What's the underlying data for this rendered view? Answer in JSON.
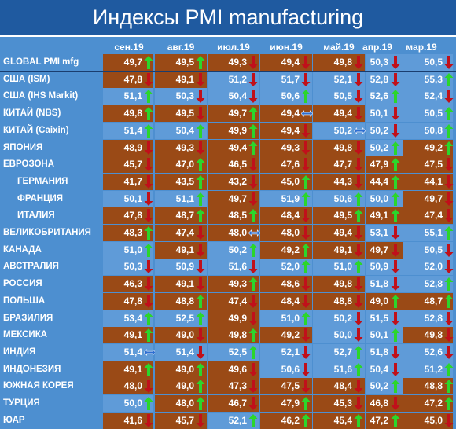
{
  "title": "Индексы PMI manufacturing",
  "chart_data": {
    "type": "table",
    "title": "Индексы PMI manufacturing",
    "columns": [
      "сен.19",
      "авг.19",
      "июл.19",
      "июн.19",
      "май.19",
      "апр.19",
      "мар.19"
    ],
    "colors": {
      "brown": "#9a4a16",
      "blue": "#5f9bd8",
      "up": "#2bd62b",
      "down": "#c0101a",
      "flat": "#2e6fd1"
    },
    "rows": [
      {
        "label": "GLOBAL PMI mfg",
        "values": [
          "49,7",
          "49,5",
          "49,3",
          "49,4",
          "49,8",
          "50,3",
          "50,5"
        ],
        "trend": [
          "up",
          "up",
          "down",
          "down",
          "down",
          "down",
          "down"
        ],
        "bg": [
          "brown",
          "brown",
          "brown",
          "brown",
          "brown",
          "blue",
          "blue"
        ]
      },
      {
        "label": "США (ISM)",
        "values": [
          "47,8",
          "49,1",
          "51,2",
          "51,7",
          "52,1",
          "52,8",
          "55,3"
        ],
        "trend": [
          "down",
          "down",
          "down",
          "down",
          "down",
          "down",
          "up"
        ],
        "bg": [
          "brown",
          "brown",
          "blue",
          "blue",
          "blue",
          "blue",
          "blue"
        ]
      },
      {
        "label": "США (IHS Markit)",
        "values": [
          "51,1",
          "50,3",
          "50,4",
          "50,6",
          "50,5",
          "52,6",
          "52,4"
        ],
        "trend": [
          "up",
          "down",
          "down",
          "up",
          "down",
          "up",
          "down"
        ],
        "bg": [
          "blue",
          "blue",
          "blue",
          "blue",
          "blue",
          "blue",
          "blue"
        ]
      },
      {
        "label": "КИТАЙ (NBS)",
        "values": [
          "49,8",
          "49,5",
          "49,7",
          "49,4",
          "49,4",
          "50,1",
          "50,5"
        ],
        "trend": [
          "up",
          "down",
          "up",
          "flat",
          "down",
          "down",
          "up"
        ],
        "bg": [
          "brown",
          "brown",
          "brown",
          "brown",
          "brown",
          "blue",
          "blue"
        ]
      },
      {
        "label": "КИТАЙ (Caixin)",
        "values": [
          "51,4",
          "50,4",
          "49,9",
          "49,4",
          "50,2",
          "50,2",
          "50,8"
        ],
        "trend": [
          "up",
          "up",
          "up",
          "down",
          "flat",
          "down",
          "up"
        ],
        "bg": [
          "blue",
          "blue",
          "brown",
          "brown",
          "blue",
          "blue",
          "blue"
        ]
      },
      {
        "label": "ЯПОНИЯ",
        "values": [
          "48,9",
          "49,3",
          "49,4",
          "49,3",
          "49,8",
          "50,2",
          "49,2"
        ],
        "trend": [
          "down",
          "down",
          "up",
          "down",
          "down",
          "up",
          "up"
        ],
        "bg": [
          "brown",
          "brown",
          "brown",
          "brown",
          "brown",
          "blue",
          "brown"
        ]
      },
      {
        "label": "ЕВРОЗОНА",
        "values": [
          "45,7",
          "47,0",
          "46,5",
          "47,6",
          "47,7",
          "47,9",
          "47,5"
        ],
        "trend": [
          "down",
          "up",
          "down",
          "down",
          "down",
          "up",
          "down"
        ],
        "bg": [
          "brown",
          "brown",
          "brown",
          "brown",
          "brown",
          "brown",
          "brown"
        ]
      },
      {
        "label": "ГЕРМАНИЯ",
        "indent": true,
        "values": [
          "41,7",
          "43,5",
          "43,2",
          "45,0",
          "44,3",
          "44,4",
          "44,1"
        ],
        "trend": [
          "down",
          "up",
          "down",
          "up",
          "down",
          "up",
          "down"
        ],
        "bg": [
          "brown",
          "brown",
          "brown",
          "brown",
          "brown",
          "brown",
          "brown"
        ]
      },
      {
        "label": "ФРАНЦИЯ",
        "indent": true,
        "values": [
          "50,1",
          "51,1",
          "49,7",
          "51,9",
          "50,6",
          "50,0",
          "49,7"
        ],
        "trend": [
          "down",
          "up",
          "down",
          "up",
          "up",
          "up",
          "down"
        ],
        "bg": [
          "blue",
          "blue",
          "brown",
          "blue",
          "blue",
          "blue",
          "brown"
        ]
      },
      {
        "label": "ИТАЛИЯ",
        "indent": true,
        "values": [
          "47,8",
          "48,7",
          "48,5",
          "48,4",
          "49,5",
          "49,1",
          "47,4"
        ],
        "trend": [
          "down",
          "up",
          "up",
          "down",
          "up",
          "up",
          "down"
        ],
        "bg": [
          "brown",
          "brown",
          "brown",
          "brown",
          "brown",
          "brown",
          "brown"
        ]
      },
      {
        "label": "ВЕЛИКОБРИТАНИЯ",
        "values": [
          "48,3",
          "47,4",
          "48,0",
          "48,0",
          "49,4",
          "53,1",
          "55,1"
        ],
        "trend": [
          "up",
          "down",
          "flat",
          "down",
          "down",
          "down",
          "up"
        ],
        "bg": [
          "brown",
          "brown",
          "brown",
          "brown",
          "brown",
          "blue",
          "blue"
        ]
      },
      {
        "label": "КАНАДА",
        "values": [
          "51,0",
          "49,1",
          "50,2",
          "49,2",
          "49,1",
          "49,7",
          "50,5"
        ],
        "trend": [
          "up",
          "down",
          "up",
          "up",
          "down",
          "down",
          "down"
        ],
        "bg": [
          "blue",
          "brown",
          "blue",
          "brown",
          "brown",
          "brown",
          "blue"
        ]
      },
      {
        "label": "АВСТРАЛИЯ",
        "values": [
          "50,3",
          "50,9",
          "51,6",
          "52,0",
          "51,0",
          "50,9",
          "52,0"
        ],
        "trend": [
          "down",
          "down",
          "down",
          "up",
          "up",
          "down",
          "down"
        ],
        "bg": [
          "blue",
          "blue",
          "blue",
          "blue",
          "blue",
          "blue",
          "blue"
        ]
      },
      {
        "label": "РОССИЯ",
        "values": [
          "46,3",
          "49,1",
          "49,3",
          "48,6",
          "49,8",
          "51,8",
          "52,8"
        ],
        "trend": [
          "down",
          "down",
          "up",
          "down",
          "down",
          "down",
          "up"
        ],
        "bg": [
          "brown",
          "brown",
          "brown",
          "brown",
          "brown",
          "blue",
          "blue"
        ]
      },
      {
        "label": "ПОЛЬША",
        "values": [
          "47,8",
          "48,8",
          "47,4",
          "48,4",
          "48,8",
          "49,0",
          "48,7"
        ],
        "trend": [
          "down",
          "up",
          "down",
          "down",
          "down",
          "up",
          "up"
        ],
        "bg": [
          "brown",
          "brown",
          "brown",
          "brown",
          "brown",
          "brown",
          "brown"
        ]
      },
      {
        "label": "БРАЗИЛИЯ",
        "values": [
          "53,4",
          "52,5",
          "49,9",
          "51,0",
          "50,2",
          "51,5",
          "52,8"
        ],
        "trend": [
          "up",
          "up",
          "down",
          "up",
          "down",
          "down",
          "down"
        ],
        "bg": [
          "blue",
          "blue",
          "brown",
          "blue",
          "blue",
          "blue",
          "blue"
        ]
      },
      {
        "label": "МЕКСИКА",
        "values": [
          "49,1",
          "49,0",
          "49,8",
          "49,2",
          "50,0",
          "50,1",
          "49,8"
        ],
        "trend": [
          "up",
          "down",
          "up",
          "down",
          "down",
          "up",
          "down"
        ],
        "bg": [
          "brown",
          "brown",
          "brown",
          "brown",
          "blue",
          "blue",
          "brown"
        ]
      },
      {
        "label": "ИНДИЯ",
        "values": [
          "51,4",
          "51,4",
          "52,5",
          "52,1",
          "52,7",
          "51,8",
          "52,6"
        ],
        "trend": [
          "flat",
          "down",
          "up",
          "down",
          "up",
          "down",
          "down"
        ],
        "bg": [
          "blue",
          "blue",
          "blue",
          "blue",
          "blue",
          "blue",
          "blue"
        ]
      },
      {
        "label": "ИНДОНЕЗИЯ",
        "values": [
          "49,1",
          "49,0",
          "49,6",
          "50,6",
          "51,6",
          "50,4",
          "51,2"
        ],
        "trend": [
          "up",
          "up",
          "down",
          "down",
          "up",
          "down",
          "up"
        ],
        "bg": [
          "brown",
          "brown",
          "brown",
          "blue",
          "blue",
          "blue",
          "blue"
        ]
      },
      {
        "label": "ЮЖНАЯ КОРЕЯ",
        "values": [
          "48,0",
          "49,0",
          "47,3",
          "47,5",
          "48,4",
          "50,2",
          "48,8"
        ],
        "trend": [
          "down",
          "up",
          "down",
          "down",
          "down",
          "up",
          "up"
        ],
        "bg": [
          "brown",
          "brown",
          "brown",
          "brown",
          "brown",
          "blue",
          "brown"
        ]
      },
      {
        "label": "ТУРЦИЯ",
        "values": [
          "50,0",
          "48,0",
          "46,7",
          "47,9",
          "45,3",
          "46,8",
          "47,2"
        ],
        "trend": [
          "up",
          "up",
          "down",
          "up",
          "down",
          "down",
          "up"
        ],
        "bg": [
          "blue",
          "brown",
          "brown",
          "brown",
          "brown",
          "brown",
          "brown"
        ]
      },
      {
        "label": "ЮАР",
        "values": [
          "41,6",
          "45,7",
          "52,1",
          "46,2",
          "45,4",
          "47,2",
          "45,0"
        ],
        "trend": [
          "down",
          "down",
          "up",
          "up",
          "up",
          "up",
          "down"
        ],
        "bg": [
          "brown",
          "brown",
          "blue",
          "brown",
          "brown",
          "brown",
          "brown"
        ]
      }
    ]
  }
}
